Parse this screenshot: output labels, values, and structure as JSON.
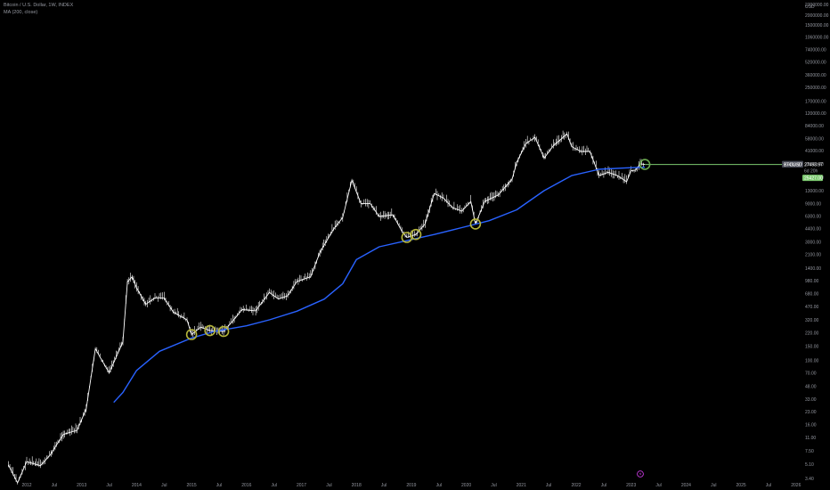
{
  "header": {
    "symbol_line": "Bitcoin / U.S. Dollar, 1W, INDEX",
    "indicator_line": "MA (200, close)"
  },
  "currency": "USD",
  "price_labels": {
    "ticker": "BTCUSD",
    "last_price": "27493.97",
    "countdown": "6d 20h",
    "ma_value": "25427.00"
  },
  "colors": {
    "background": "#000000",
    "candle": "#ffffff",
    "ma_line": "#2962ff",
    "horizontal_line": "#7bc96f",
    "circle_yellow": "#b5b53a",
    "circle_green": "#6aa84f",
    "axis_text": "#9598a1"
  },
  "chart_data": {
    "type": "line",
    "scale": "log",
    "y_ticks": [
      "2700000.00",
      "2000000.00",
      "1500000.00",
      "1060000.00",
      "740000.00",
      "520000.00",
      "360000.00",
      "250000.00",
      "170000.00",
      "120000.00",
      "84000.00",
      "58000.00",
      "41000.00",
      "28000.00",
      "19000.00",
      "13000.00",
      "9000.00",
      "6300.00",
      "4400.00",
      "3000.00",
      "2100.00",
      "1400.00",
      "980.00",
      "680.00",
      "470.00",
      "320.00",
      "220.00",
      "150.00",
      "100.00",
      "70.00",
      "48.00",
      "33.00",
      "23.00",
      "16.00",
      "11.00",
      "7.50",
      "5.10",
      "3.40"
    ],
    "x_ticks": [
      "2012",
      "Jul",
      "2013",
      "Jul",
      "2014",
      "Jul",
      "2015",
      "Jul",
      "2016",
      "Jul",
      "2017",
      "Jul",
      "2018",
      "Jul",
      "2019",
      "Jul",
      "2020",
      "Jul",
      "2021",
      "Jul",
      "2022",
      "Jul",
      "2023",
      "Jul",
      "2024",
      "Jul",
      "2025",
      "Jul",
      "2026"
    ],
    "series": [
      {
        "name": "BTCUSD",
        "points": [
          [
            "2011-09",
            5
          ],
          [
            "2011-11",
            3
          ],
          [
            "2012-01",
            5.5
          ],
          [
            "2012-04",
            4.9
          ],
          [
            "2012-06",
            6.5
          ],
          [
            "2012-09",
            12
          ],
          [
            "2012-12",
            13.5
          ],
          [
            "2013-02",
            25
          ],
          [
            "2013-04",
            140
          ],
          [
            "2013-05",
            110
          ],
          [
            "2013-07",
            70
          ],
          [
            "2013-10",
            170
          ],
          [
            "2013-11",
            950
          ],
          [
            "2013-12",
            1100
          ],
          [
            "2014-01",
            800
          ],
          [
            "2014-03",
            500
          ],
          [
            "2014-05",
            600
          ],
          [
            "2014-07",
            600
          ],
          [
            "2014-09",
            400
          ],
          [
            "2014-12",
            320
          ],
          [
            "2015-01",
            210
          ],
          [
            "2015-03",
            260
          ],
          [
            "2015-05",
            235
          ],
          [
            "2015-08",
            230
          ],
          [
            "2015-10",
            310
          ],
          [
            "2015-12",
            430
          ],
          [
            "2016-03",
            415
          ],
          [
            "2016-06",
            700
          ],
          [
            "2016-08",
            580
          ],
          [
            "2016-10",
            640
          ],
          [
            "2016-12",
            960
          ],
          [
            "2017-03",
            1100
          ],
          [
            "2017-05",
            2200
          ],
          [
            "2017-08",
            4300
          ],
          [
            "2017-10",
            6000
          ],
          [
            "2017-12",
            17500
          ],
          [
            "2018-02",
            9000
          ],
          [
            "2018-04",
            9000
          ],
          [
            "2018-06",
            6200
          ],
          [
            "2018-09",
            6500
          ],
          [
            "2018-11",
            4000
          ],
          [
            "2018-12",
            3400
          ],
          [
            "2019-02",
            3700
          ],
          [
            "2019-04",
            5000
          ],
          [
            "2019-06",
            12000
          ],
          [
            "2019-08",
            10500
          ],
          [
            "2019-10",
            8000
          ],
          [
            "2019-12",
            7200
          ],
          [
            "2020-02",
            9500
          ],
          [
            "2020-03",
            5000
          ],
          [
            "2020-05",
            9500
          ],
          [
            "2020-08",
            11500
          ],
          [
            "2020-11",
            18000
          ],
          [
            "2020-12",
            29000
          ],
          [
            "2021-02",
            50000
          ],
          [
            "2021-04",
            60000
          ],
          [
            "2021-06",
            33000
          ],
          [
            "2021-08",
            47000
          ],
          [
            "2021-11",
            66000
          ],
          [
            "2021-12",
            46000
          ],
          [
            "2022-02",
            40000
          ],
          [
            "2022-04",
            40000
          ],
          [
            "2022-06",
            20000
          ],
          [
            "2022-08",
            22000
          ],
          [
            "2022-10",
            20000
          ],
          [
            "2022-12",
            16800
          ],
          [
            "2023-01",
            23000
          ],
          [
            "2023-02",
            23500
          ],
          [
            "2023-03",
            28000
          ],
          [
            "2023-04",
            27500
          ]
        ]
      },
      {
        "name": "MA (200, close)",
        "points": [
          [
            "2013-08",
            30
          ],
          [
            "2013-10",
            40
          ],
          [
            "2014-01",
            75
          ],
          [
            "2014-06",
            130
          ],
          [
            "2015-01",
            190
          ],
          [
            "2015-06",
            230
          ],
          [
            "2016-01",
            270
          ],
          [
            "2016-06",
            320
          ],
          [
            "2016-12",
            410
          ],
          [
            "2017-06",
            580
          ],
          [
            "2017-10",
            900
          ],
          [
            "2018-01",
            1800
          ],
          [
            "2018-06",
            2600
          ],
          [
            "2018-12",
            3100
          ],
          [
            "2019-06",
            3700
          ],
          [
            "2019-12",
            4500
          ],
          [
            "2020-06",
            5500
          ],
          [
            "2020-12",
            7500
          ],
          [
            "2021-06",
            13000
          ],
          [
            "2021-12",
            20000
          ],
          [
            "2022-06",
            24000
          ],
          [
            "2022-12",
            25000
          ],
          [
            "2023-04",
            25427
          ]
        ]
      }
    ],
    "highlight_dates": [
      "2015-01",
      "2015-08",
      "2015-05",
      "2019-02",
      "2018-12",
      "2020-03",
      "2023-04"
    ]
  }
}
